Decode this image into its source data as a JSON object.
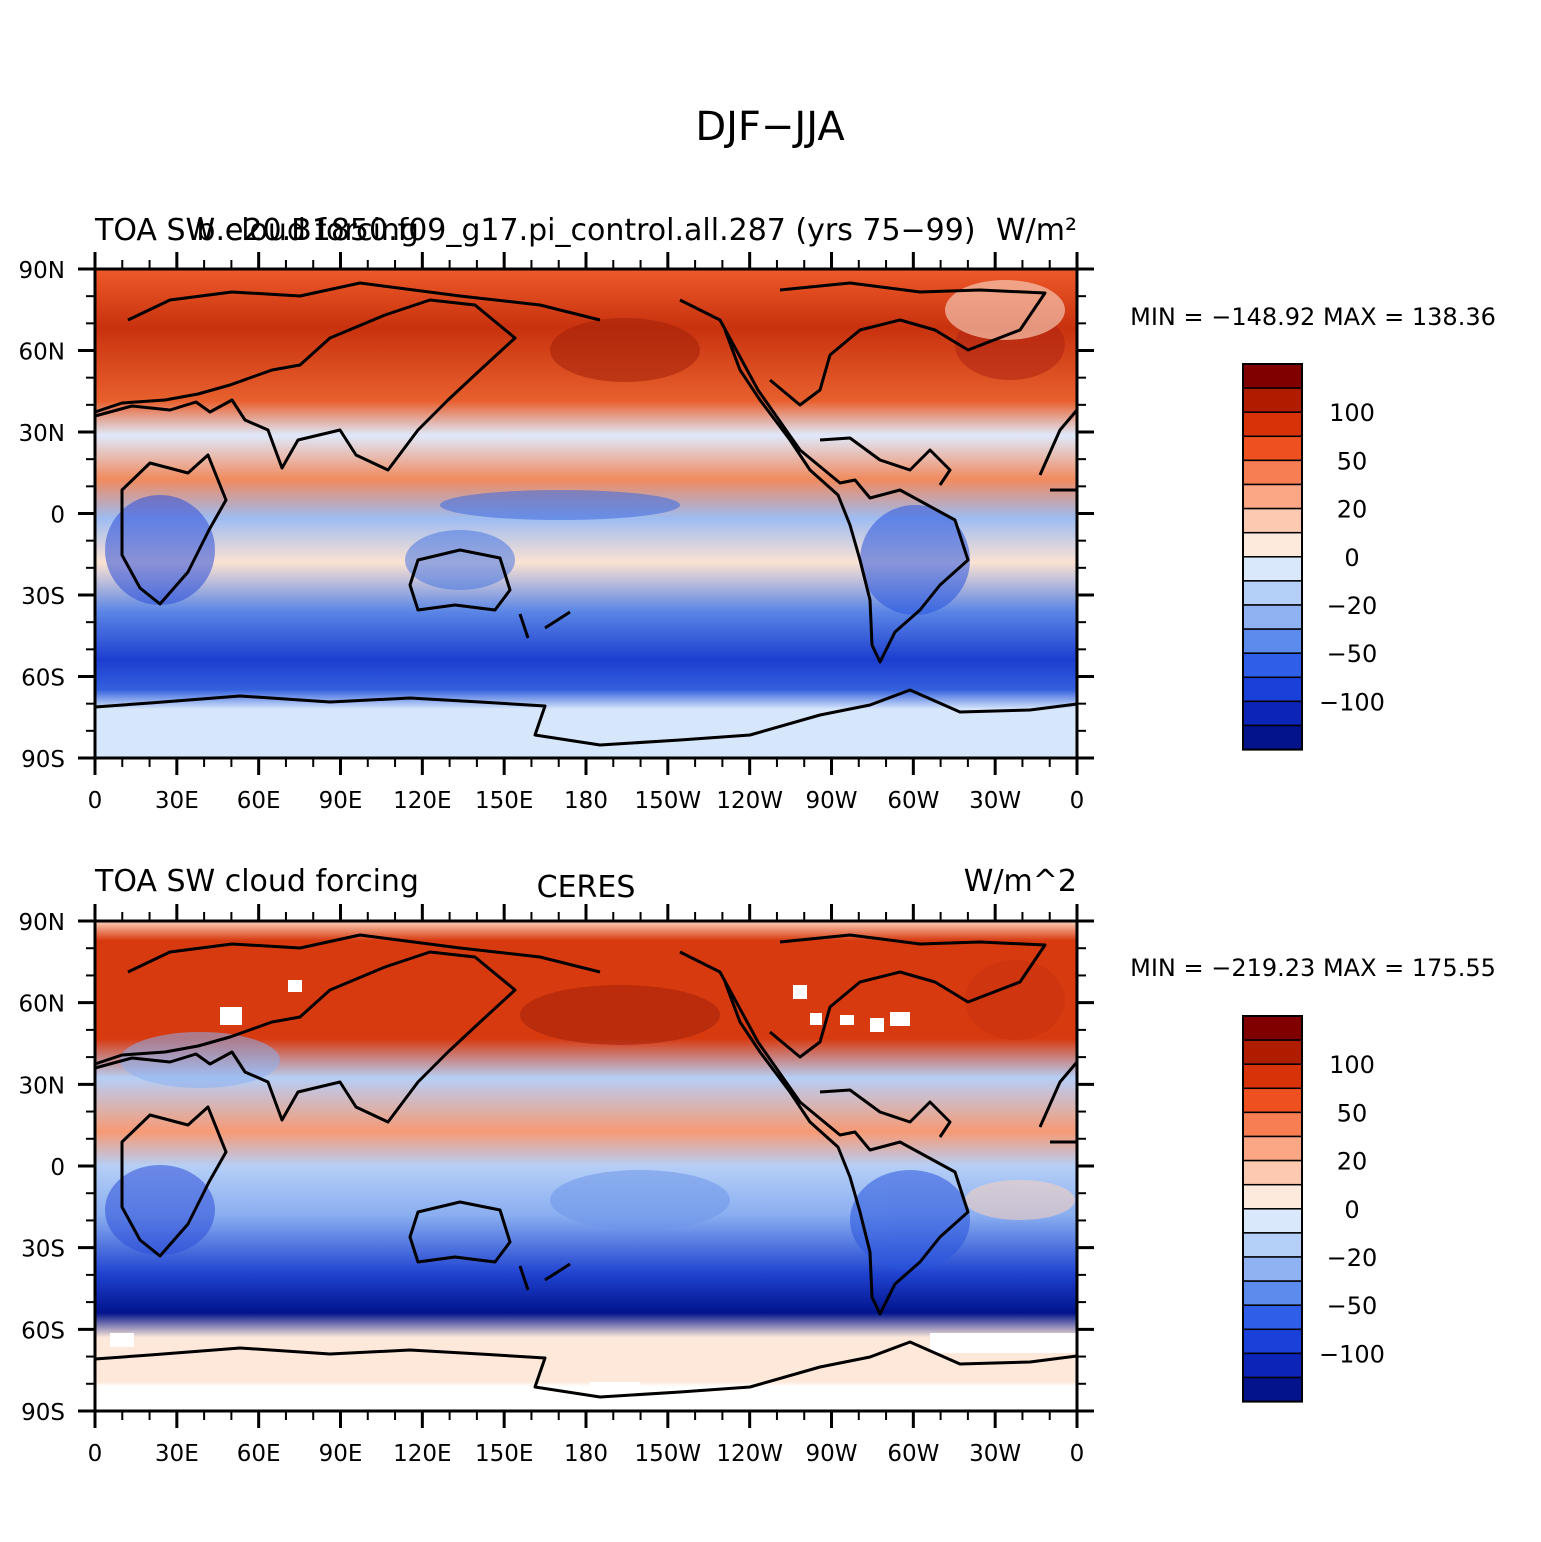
{
  "title": "DJF−JJA",
  "panels": [
    {
      "id": "model",
      "left_title": "TOA SW cloud forcing",
      "center_title": "b.e20.B1850.f09_g17.pi_control.all.287 (yrs 75−99)",
      "right_title": "W/m²",
      "stats": "MIN = −148.92  MAX = 138.36"
    },
    {
      "id": "obs",
      "left_title": "TOA SW cloud forcing",
      "center_title": "CERES",
      "right_title": "W/m^2",
      "stats": "MIN = −219.23  MAX = 175.55"
    }
  ],
  "lat_labels": [
    "90N",
    "60N",
    "30N",
    "0",
    "30S",
    "60S",
    "90S"
  ],
  "lon_labels": [
    "0",
    "30E",
    "60E",
    "90E",
    "120E",
    "150E",
    "180",
    "150W",
    "120W",
    "90W",
    "60W",
    "30W",
    "0"
  ],
  "colorbar": {
    "labels": [
      "100",
      "50",
      "20",
      "0",
      "−20",
      "−50",
      "−100"
    ],
    "colors": [
      "#800000",
      "#b01c00",
      "#d83208",
      "#ee5020",
      "#f77e52",
      "#fba684",
      "#fdc9b0",
      "#feeadc",
      "#d9e8fb",
      "#b5d0f8",
      "#8fb3f2",
      "#5b8bec",
      "#2f5ee8",
      "#1940d8",
      "#0c25b8",
      "#02138c"
    ]
  }
}
